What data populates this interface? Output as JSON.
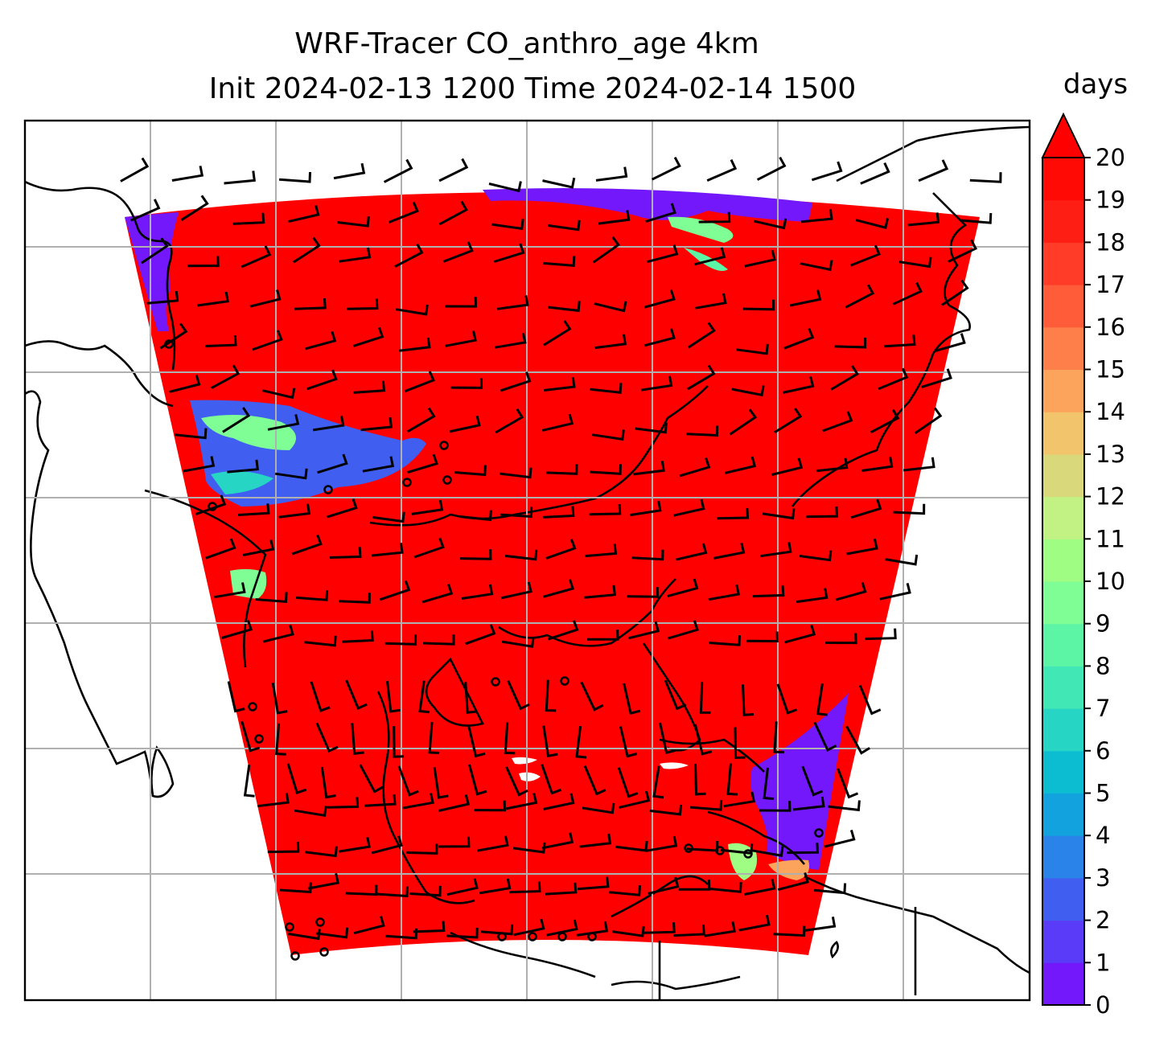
{
  "chart_data": {
    "type": "heatmap",
    "title": "WRF-Tracer CO_anthro_age 4km",
    "subtitle": "Init 2024-02-13 1200 Time 2024-02-14 1500",
    "colorbar": {
      "label": "days",
      "min": 0,
      "max": 20,
      "extend": "max",
      "ticks": [
        "0",
        "1",
        "2",
        "3",
        "4",
        "5",
        "6",
        "7",
        "8",
        "9",
        "10",
        "11",
        "12",
        "13",
        "14",
        "15",
        "16",
        "17",
        "18",
        "19",
        "20"
      ],
      "colors": [
        "#7418fc",
        "#5a3cf8",
        "#405ff1",
        "#2a83e9",
        "#12a3df",
        "#0cbdd2",
        "#27d5c4",
        "#41e8b6",
        "#5cf5a6",
        "#7ffe95",
        "#a0fd84",
        "#c2f184",
        "#d9d87a",
        "#f2c46b",
        "#fca35c",
        "#ff7f4b",
        "#ff5c39",
        "#ff3c28",
        "#ff1e14",
        "#ff0a05",
        "#ff0000"
      ],
      "over_color": "#ff0000"
    },
    "field_description_values": {
      "dominant_value": 20,
      "young_air_patches": [
        {
          "region": "north-east edge",
          "value": 1
        },
        {
          "region": "west edge",
          "value": 1
        },
        {
          "region": "south-east edge",
          "value": 1
        },
        {
          "region": "western plume",
          "value": 8
        }
      ]
    },
    "gridlines": true,
    "overlays": [
      "coastlines",
      "country borders",
      "wind barbs"
    ]
  }
}
